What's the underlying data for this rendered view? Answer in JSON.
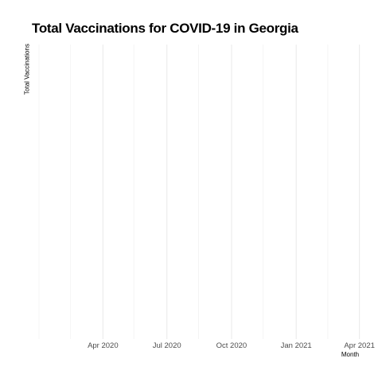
{
  "chart_data": {
    "type": "line",
    "title": "Total Vaccinations for COVID-19 in Georgia",
    "xlabel": "Month",
    "ylabel": "Total Vaccinations",
    "x_axis_type": "date",
    "xlim": [
      "2020-01-01",
      "2021-04-15"
    ],
    "major_ticks": [
      {
        "date": "2020-04-01",
        "label": "Apr 2020"
      },
      {
        "date": "2020-07-01",
        "label": "Jul 2020"
      },
      {
        "date": "2020-10-01",
        "label": "Oct 2020"
      },
      {
        "date": "2021-01-01",
        "label": "Jan 2021"
      },
      {
        "date": "2021-04-01",
        "label": "Apr 2021"
      }
    ],
    "minor_ticks": [
      "2020-02-15",
      "2020-05-15",
      "2020-08-15",
      "2020-11-15",
      "2021-02-15"
    ],
    "y_tick_labels": [],
    "series": [],
    "grid": true,
    "legend": "none"
  }
}
